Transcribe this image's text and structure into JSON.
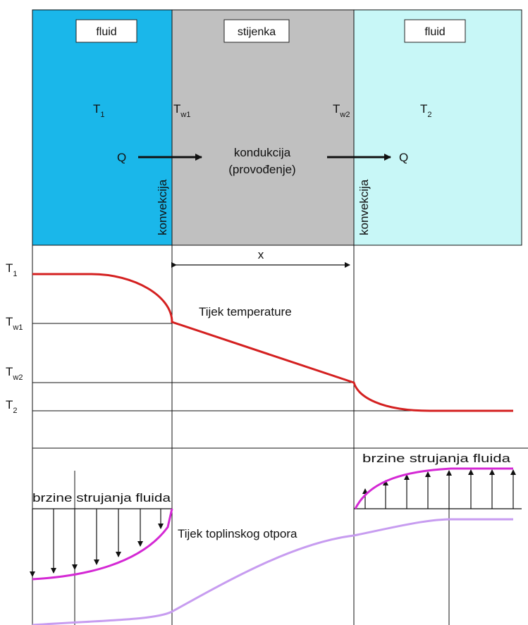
{
  "zones": {
    "left_fluid": {
      "label": "fluid",
      "color": "#1ab7ea"
    },
    "wall": {
      "label": "stijenka",
      "color": "#c0c0c0"
    },
    "right_fluid": {
      "label": "fluid",
      "color": "#c8f7f7"
    }
  },
  "temps": {
    "T1": {
      "main": "T",
      "sub": "1"
    },
    "Tw1": {
      "main": "T",
      "sub": "w1"
    },
    "Tw2": {
      "main": "T",
      "sub": "w2"
    },
    "T2": {
      "main": "T",
      "sub": "2"
    }
  },
  "flow": {
    "q_left": "Q",
    "q_right": "Q",
    "conduction_line1": "kondukcija",
    "conduction_line2": "(provođenje)",
    "convection_left": "konvekcija",
    "convection_right": "konvekcija"
  },
  "thickness_label": "x",
  "temperature_curve_label": "Tijek temperature",
  "velocity_left_label": "brzine strujanja fluida",
  "velocity_right_label": "brzine strujanja fluida",
  "resistance_label": "Tijek toplinskog otpora",
  "colors": {
    "temperature_curve": "#d42020",
    "velocity_profile": "#d428d4",
    "resistance_curve": "#c79cf0",
    "lines": "#111111"
  }
}
